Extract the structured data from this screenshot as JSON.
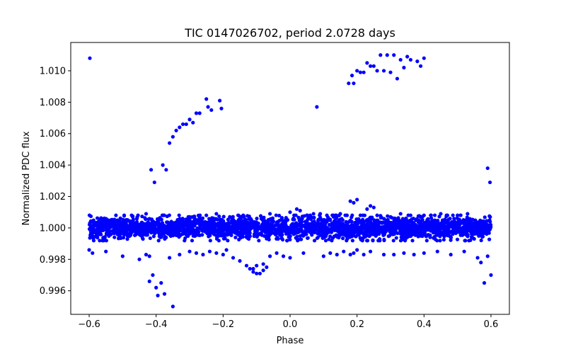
{
  "chart_data": {
    "type": "scatter",
    "title": "TIC 0147026702, period 2.0728 days",
    "xlabel": "Phase",
    "ylabel": "Normalized PDC flux",
    "xlim": [
      -0.655,
      0.655
    ],
    "ylim": [
      0.9945,
      1.0118
    ],
    "grid": false,
    "legend": "none",
    "marker_color": "#0000ff",
    "xticks": [
      -0.6,
      -0.4,
      -0.2,
      0.0,
      0.2,
      0.4,
      0.6
    ],
    "xtick_labels": [
      "−0.6",
      "−0.4",
      "−0.2",
      "0.0",
      "0.2",
      "0.4",
      "0.6"
    ],
    "yticks": [
      0.996,
      0.998,
      1.0,
      1.002,
      1.004,
      1.006,
      1.008,
      1.01
    ],
    "ytick_labels": [
      "0.996",
      "0.998",
      "1.000",
      "1.002",
      "1.004",
      "1.006",
      "1.008",
      "1.010"
    ],
    "baseline": {
      "description": "dense band of measurements near 1.000 across all phases",
      "x_range": [
        -0.6,
        0.6
      ],
      "center": 1.0,
      "spread": 0.00035,
      "count": 2600
    },
    "points": {
      "x": [
        -0.598,
        -0.415,
        -0.405,
        -0.38,
        -0.37,
        -0.36,
        -0.35,
        -0.34,
        -0.33,
        -0.32,
        -0.31,
        -0.3,
        -0.29,
        -0.28,
        -0.27,
        -0.25,
        -0.245,
        -0.235,
        -0.21,
        -0.205,
        0.08,
        0.175,
        0.185,
        0.19,
        0.2,
        0.21,
        0.22,
        0.23,
        0.24,
        0.25,
        0.26,
        0.27,
        0.28,
        0.29,
        0.3,
        0.31,
        0.32,
        0.33,
        0.34,
        0.35,
        0.36,
        0.38,
        0.39,
        0.4,
        0.59,
        0.597,
        -0.42,
        -0.41,
        -0.4,
        -0.395,
        -0.385,
        -0.375,
        -0.35,
        0.58,
        0.6,
        -0.6,
        -0.59,
        -0.55,
        -0.5,
        -0.45,
        -0.43,
        -0.42,
        -0.36,
        -0.33,
        -0.3,
        -0.28,
        -0.26,
        -0.24,
        -0.22,
        -0.2,
        -0.19,
        -0.17,
        -0.15,
        -0.13,
        -0.11,
        -0.1,
        -0.08,
        -0.06,
        -0.04,
        -0.02,
        0.0,
        0.04,
        0.1,
        0.12,
        0.14,
        0.16,
        0.18,
        0.19,
        0.2,
        0.22,
        0.24,
        0.28,
        0.31,
        0.34,
        0.37,
        0.4,
        0.44,
        0.48,
        0.52,
        0.56,
        0.57,
        0.59,
        -0.12,
        -0.11,
        -0.1,
        -0.09,
        -0.08,
        -0.07,
        0.02,
        0.03,
        0.05,
        0.07,
        0.18,
        0.19,
        0.2,
        0.23,
        0.24,
        0.25,
        0.4,
        0.45,
        0.5,
        -0.52,
        -0.47,
        -0.43,
        -0.38,
        -0.3,
        -0.25,
        -0.22,
        -0.18,
        -0.14,
        -0.06,
        0.0,
        0.06,
        0.09,
        0.11,
        0.13,
        0.15,
        0.17,
        0.21,
        0.26,
        0.3,
        0.33,
        0.36,
        0.39,
        0.42,
        0.47,
        0.53
      ],
      "y": [
        1.0108,
        1.0037,
        1.0029,
        1.004,
        1.0037,
        1.0054,
        1.0058,
        1.0062,
        1.0064,
        1.0066,
        1.0066,
        1.0069,
        1.0067,
        1.0073,
        1.0073,
        1.0082,
        1.0077,
        1.0075,
        1.0081,
        1.0076,
        1.0077,
        1.0092,
        1.0097,
        1.0092,
        1.01,
        1.0099,
        1.0099,
        1.0105,
        1.0103,
        1.0103,
        1.01,
        1.011,
        1.01,
        1.011,
        1.0099,
        1.011,
        1.0095,
        1.0107,
        1.0102,
        1.0109,
        1.0107,
        1.0106,
        1.0103,
        1.0108,
        1.0038,
        1.0029,
        0.9966,
        0.997,
        0.9962,
        0.9957,
        0.9965,
        0.9958,
        0.995,
        0.9965,
        0.997,
        0.9986,
        0.9984,
        0.9985,
        0.9982,
        0.998,
        0.9983,
        0.9982,
        0.9981,
        0.9983,
        0.9985,
        0.9984,
        0.9983,
        0.9985,
        0.9984,
        0.9983,
        0.9986,
        0.9981,
        0.9979,
        0.9976,
        0.9974,
        0.9971,
        0.9977,
        0.9982,
        0.9984,
        0.9982,
        0.9981,
        0.9984,
        0.9982,
        0.9984,
        0.9983,
        0.9985,
        0.9983,
        0.9984,
        0.9986,
        0.9983,
        0.9985,
        0.9983,
        0.9983,
        0.9984,
        0.9983,
        0.9984,
        0.9985,
        0.9983,
        0.9985,
        0.9981,
        0.9978,
        0.9982,
        0.9974,
        0.9972,
        0.9976,
        0.9971,
        0.9973,
        0.9975,
        1.0012,
        1.0011,
        1.0008,
        1.0009,
        1.0017,
        1.0016,
        1.0018,
        1.0012,
        1.0014,
        1.0013,
        1.0008,
        1.0009,
        1.0008,
        1.0008,
        1.0007,
        1.0009,
        1.0008,
        1.0007,
        1.0008,
        1.0009,
        1.0007,
        1.0008,
        1.0009,
        1.001,
        1.0008,
        1.0009,
        1.0008,
        1.0007,
        1.0009,
        1.0008,
        1.0008,
        1.0008,
        1.0007,
        1.0009,
        1.0008,
        1.0007,
        1.0008,
        1.0008,
        1.0009
      ]
    }
  }
}
